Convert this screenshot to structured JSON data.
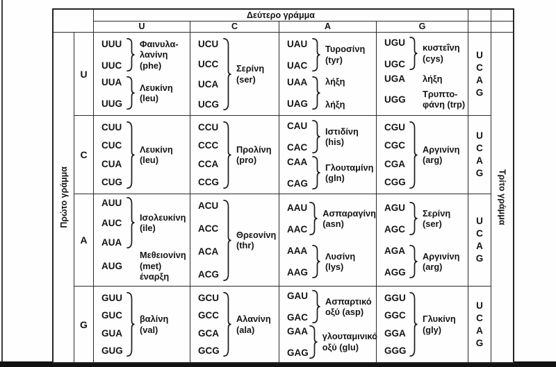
{
  "header": {
    "second_letter": "Δεύτερο γράμμα",
    "first_letter": "Πρώτο γράμμα",
    "third_letter": "Τρίτο γράμμα",
    "columns": [
      "U",
      "C",
      "A",
      "G"
    ]
  },
  "third_letters": [
    "U",
    "C",
    "A",
    "G"
  ],
  "colors": {
    "border": "#232323",
    "text": "#141414",
    "bottom_bar": "#121212",
    "background": "#fefefe"
  },
  "rows": [
    {
      "letter": "U",
      "cells": [
        {
          "groups": [
            {
              "codons": [
                "UUU",
                "UUC"
              ],
              "brace": true,
              "label": [
                "Φαινυλα-",
                "λανίνη",
                "(phe)"
              ]
            },
            {
              "codons": [
                "UUA",
                "UUG"
              ],
              "brace": true,
              "label": [
                "Λευκίνη",
                "(leu)"
              ]
            }
          ]
        },
        {
          "groups": [
            {
              "codons": [
                "UCU",
                "UCC",
                "UCA",
                "UCG"
              ],
              "brace": true,
              "label": [
                "Σερίνη",
                "(ser)"
              ]
            }
          ]
        },
        {
          "groups": [
            {
              "codons": [
                "UAU",
                "UAC"
              ],
              "brace": true,
              "label": [
                "Τυροσίνη",
                "(tyr)"
              ]
            },
            {
              "codons": [
                "UAA",
                "UAG"
              ],
              "brace": true,
              "label": [
                "λήξη",
                "λήξη"
              ],
              "spread": true
            }
          ]
        },
        {
          "groups": [
            {
              "codons": [
                "UGU",
                "UGC"
              ],
              "brace": true,
              "label": [
                "κυστεΐνη",
                "(cys)"
              ]
            },
            {
              "codons": [
                "UGA"
              ],
              "brace": false,
              "label": [
                "λήξη"
              ]
            },
            {
              "codons": [
                "UGG"
              ],
              "brace": false,
              "label": [
                "Τρυπτο-",
                "φάνη (trp)"
              ]
            }
          ]
        }
      ]
    },
    {
      "letter": "C",
      "cells": [
        {
          "groups": [
            {
              "codons": [
                "CUU",
                "CUC",
                "CUA",
                "CUG"
              ],
              "brace": true,
              "label": [
                "Λευκίνη",
                "(leu)"
              ]
            }
          ]
        },
        {
          "groups": [
            {
              "codons": [
                "CCU",
                "CCC",
                "CCA",
                "CCG"
              ],
              "brace": true,
              "label": [
                "Προλίνη",
                "(pro)"
              ]
            }
          ]
        },
        {
          "groups": [
            {
              "codons": [
                "CAU",
                "CAC"
              ],
              "brace": true,
              "label": [
                "Ιστιδίνη",
                "(his)"
              ]
            },
            {
              "codons": [
                "CAA",
                "CAG"
              ],
              "brace": true,
              "label": [
                "Γλουταμίνη",
                "(gln)"
              ]
            }
          ]
        },
        {
          "groups": [
            {
              "codons": [
                "CGU",
                "CGC",
                "CGA",
                "CGG"
              ],
              "brace": true,
              "label": [
                "Αργινίνη",
                "(arg)"
              ]
            }
          ]
        }
      ]
    },
    {
      "letter": "A",
      "cells": [
        {
          "groups": [
            {
              "codons": [
                "AUU",
                "AUC",
                "AUA"
              ],
              "brace": true,
              "label": [
                "Ισολευκίνη",
                "(ile)"
              ]
            },
            {
              "codons": [
                "AUG"
              ],
              "brace": false,
              "label": [
                "Μεθειονίνη",
                "(met)",
                "έναρξη"
              ]
            }
          ]
        },
        {
          "groups": [
            {
              "codons": [
                "ACU",
                "ACC",
                "ACA",
                "ACG"
              ],
              "brace": true,
              "label": [
                "Θρεονίνη",
                "(thr)"
              ]
            }
          ]
        },
        {
          "groups": [
            {
              "codons": [
                "AAU",
                "AAC"
              ],
              "brace": true,
              "label": [
                "Ασπαραγίνη",
                "(asn)"
              ]
            },
            {
              "codons": [
                "AAA",
                "AAG"
              ],
              "brace": true,
              "label": [
                "Λυσίνη",
                "(lys)"
              ]
            }
          ]
        },
        {
          "groups": [
            {
              "codons": [
                "AGU",
                "AGC"
              ],
              "brace": true,
              "label": [
                "Σερίνη",
                "(ser)"
              ]
            },
            {
              "codons": [
                "AGA",
                "AGG"
              ],
              "brace": true,
              "label": [
                "Αργινίνη",
                "(arg)"
              ]
            }
          ]
        }
      ]
    },
    {
      "letter": "G",
      "cells": [
        {
          "groups": [
            {
              "codons": [
                "GUU",
                "GUC",
                "GUA",
                "GUG"
              ],
              "brace": true,
              "label": [
                "βαλίνη",
                "(val)"
              ]
            }
          ]
        },
        {
          "groups": [
            {
              "codons": [
                "GCU",
                "GCC",
                "GCA",
                "GCG"
              ],
              "brace": true,
              "label": [
                "Αλανίνη",
                "(ala)"
              ]
            }
          ]
        },
        {
          "groups": [
            {
              "codons": [
                "GAU",
                "GAC"
              ],
              "brace": true,
              "label": [
                "Ασπαρτικό",
                "οξύ (asp)"
              ]
            },
            {
              "codons": [
                "GAA",
                "GAG"
              ],
              "brace": true,
              "label": [
                "γλουταμινικό",
                "οξύ (glu)"
              ]
            }
          ]
        },
        {
          "groups": [
            {
              "codons": [
                "GGU",
                "GGC",
                "GGA",
                "GGG"
              ],
              "brace": true,
              "label": [
                "Γλυκίνη",
                "(gly)"
              ]
            }
          ]
        }
      ]
    }
  ]
}
